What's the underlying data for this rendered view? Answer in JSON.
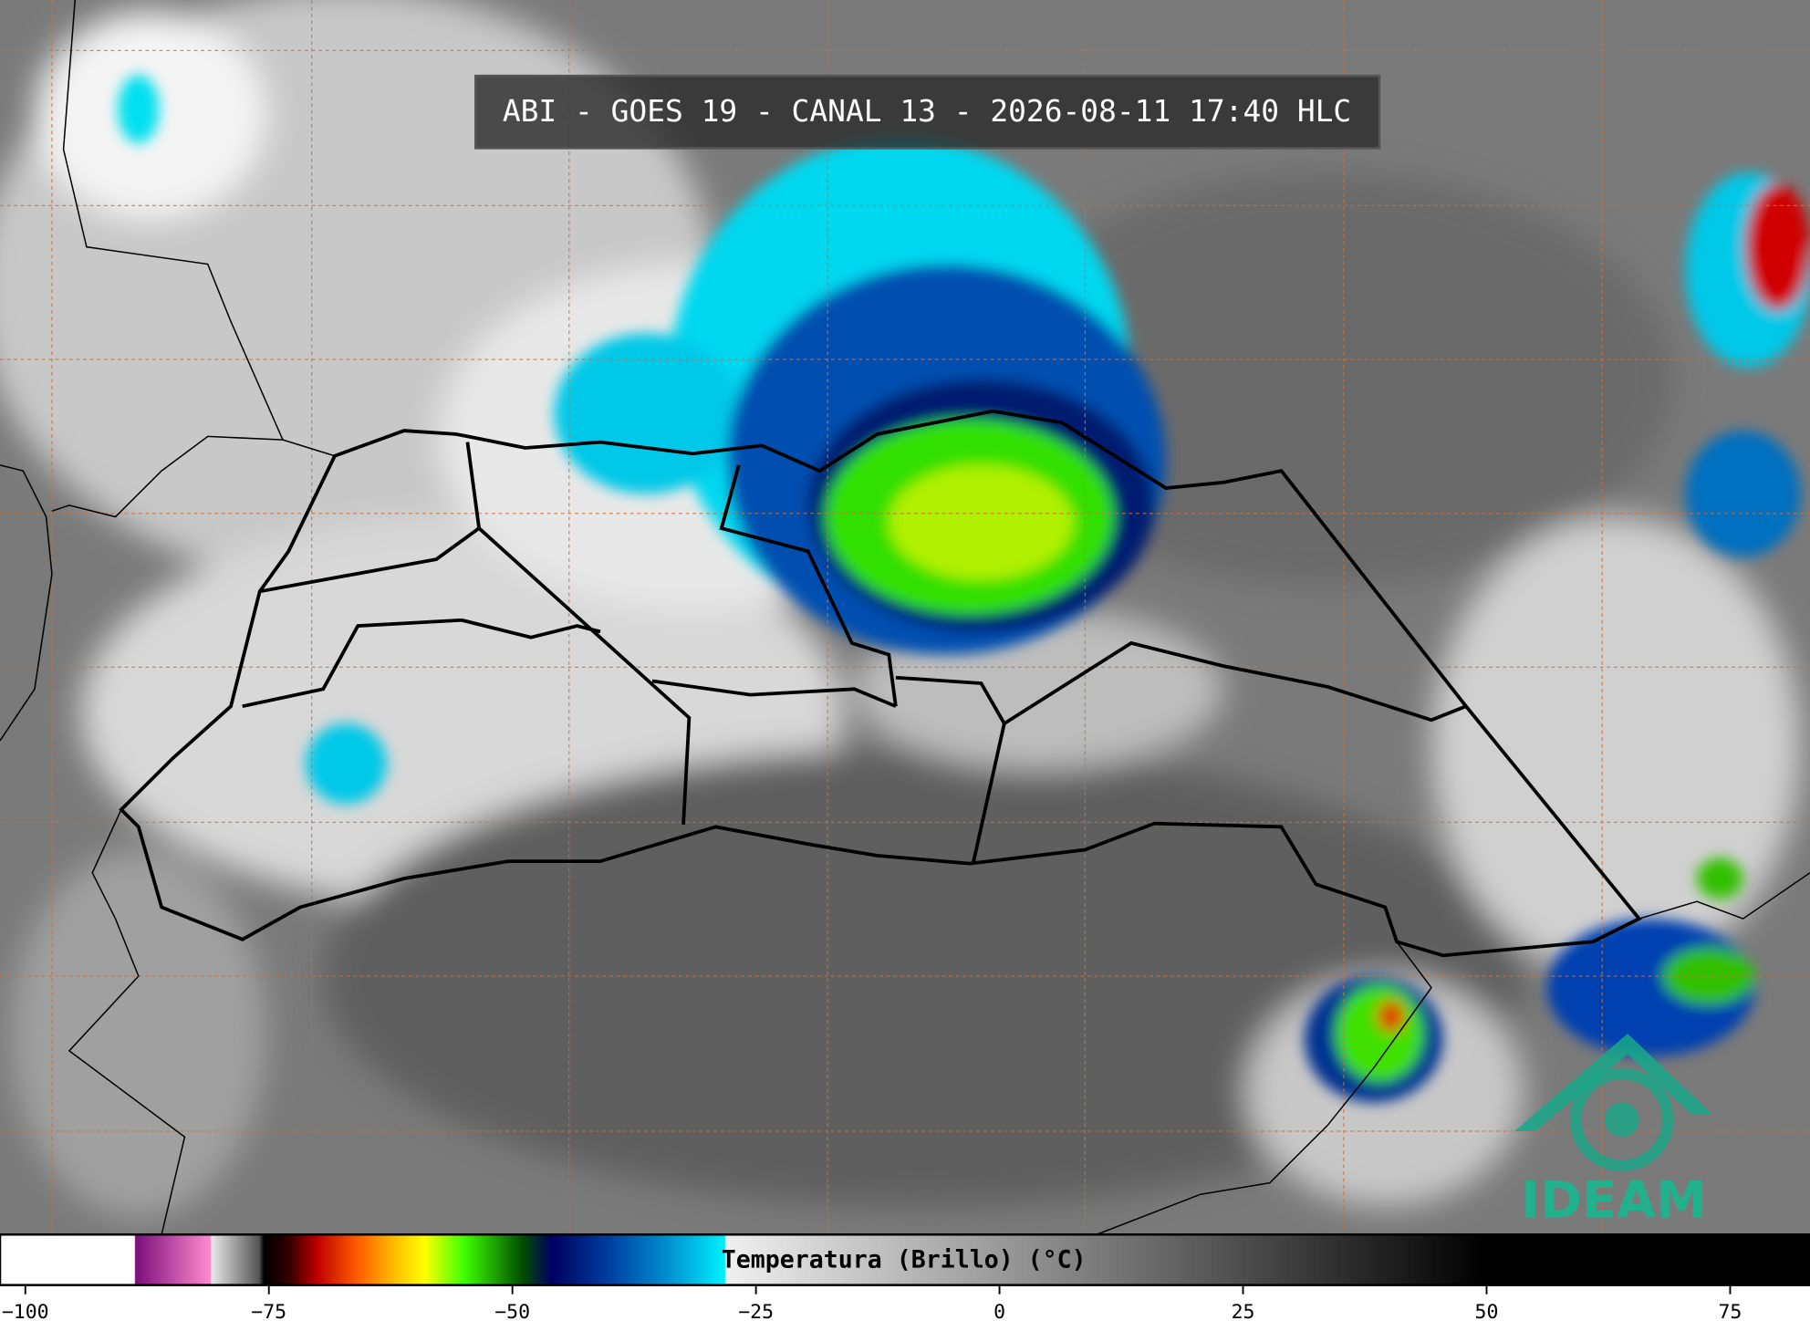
{
  "title": "ABI - GOES 19 - CANAL 13 - 2026-08-11 17:40 HLC",
  "colorbar": {
    "label": "Temperatura (Brillo) (°C)",
    "range": [
      -102.6,
      83.2
    ],
    "ticks": [
      {
        "value": -100,
        "label": "−100"
      },
      {
        "value": -75,
        "label": "−75"
      },
      {
        "value": -50,
        "label": "−50"
      },
      {
        "value": -25,
        "label": "−25"
      },
      0,
      25,
      50,
      75
    ],
    "stops": [
      {
        "value": -102.6,
        "color": "#ffffff"
      },
      {
        "value": -88.8,
        "color": "#ffffff"
      },
      {
        "value": -88.7,
        "color": "#7a0f7a"
      },
      {
        "value": -81,
        "color": "#ff8ad0"
      },
      {
        "value": -80.9,
        "color": "#e8e8e8"
      },
      {
        "value": -76,
        "color": "#555555"
      },
      {
        "value": -75.5,
        "color": "#000000"
      },
      {
        "value": -73,
        "color": "#300000"
      },
      {
        "value": -70,
        "color": "#c00000"
      },
      {
        "value": -66,
        "color": "#ff5a00"
      },
      {
        "value": -62,
        "color": "#ffc000"
      },
      {
        "value": -59,
        "color": "#ffff00"
      },
      {
        "value": -55,
        "color": "#40ff00"
      },
      {
        "value": -49,
        "color": "#005000"
      },
      {
        "value": -46,
        "color": "#000060"
      },
      {
        "value": -40,
        "color": "#0040a0"
      },
      {
        "value": -34,
        "color": "#0090d0"
      },
      {
        "value": -28.2,
        "color": "#00f0ff"
      },
      {
        "value": -28.1,
        "color": "#f0f0f0"
      },
      {
        "value": 50,
        "color": "#000000"
      },
      {
        "value": 83.2,
        "color": "#000000"
      }
    ]
  },
  "logo": "IDEAM"
}
